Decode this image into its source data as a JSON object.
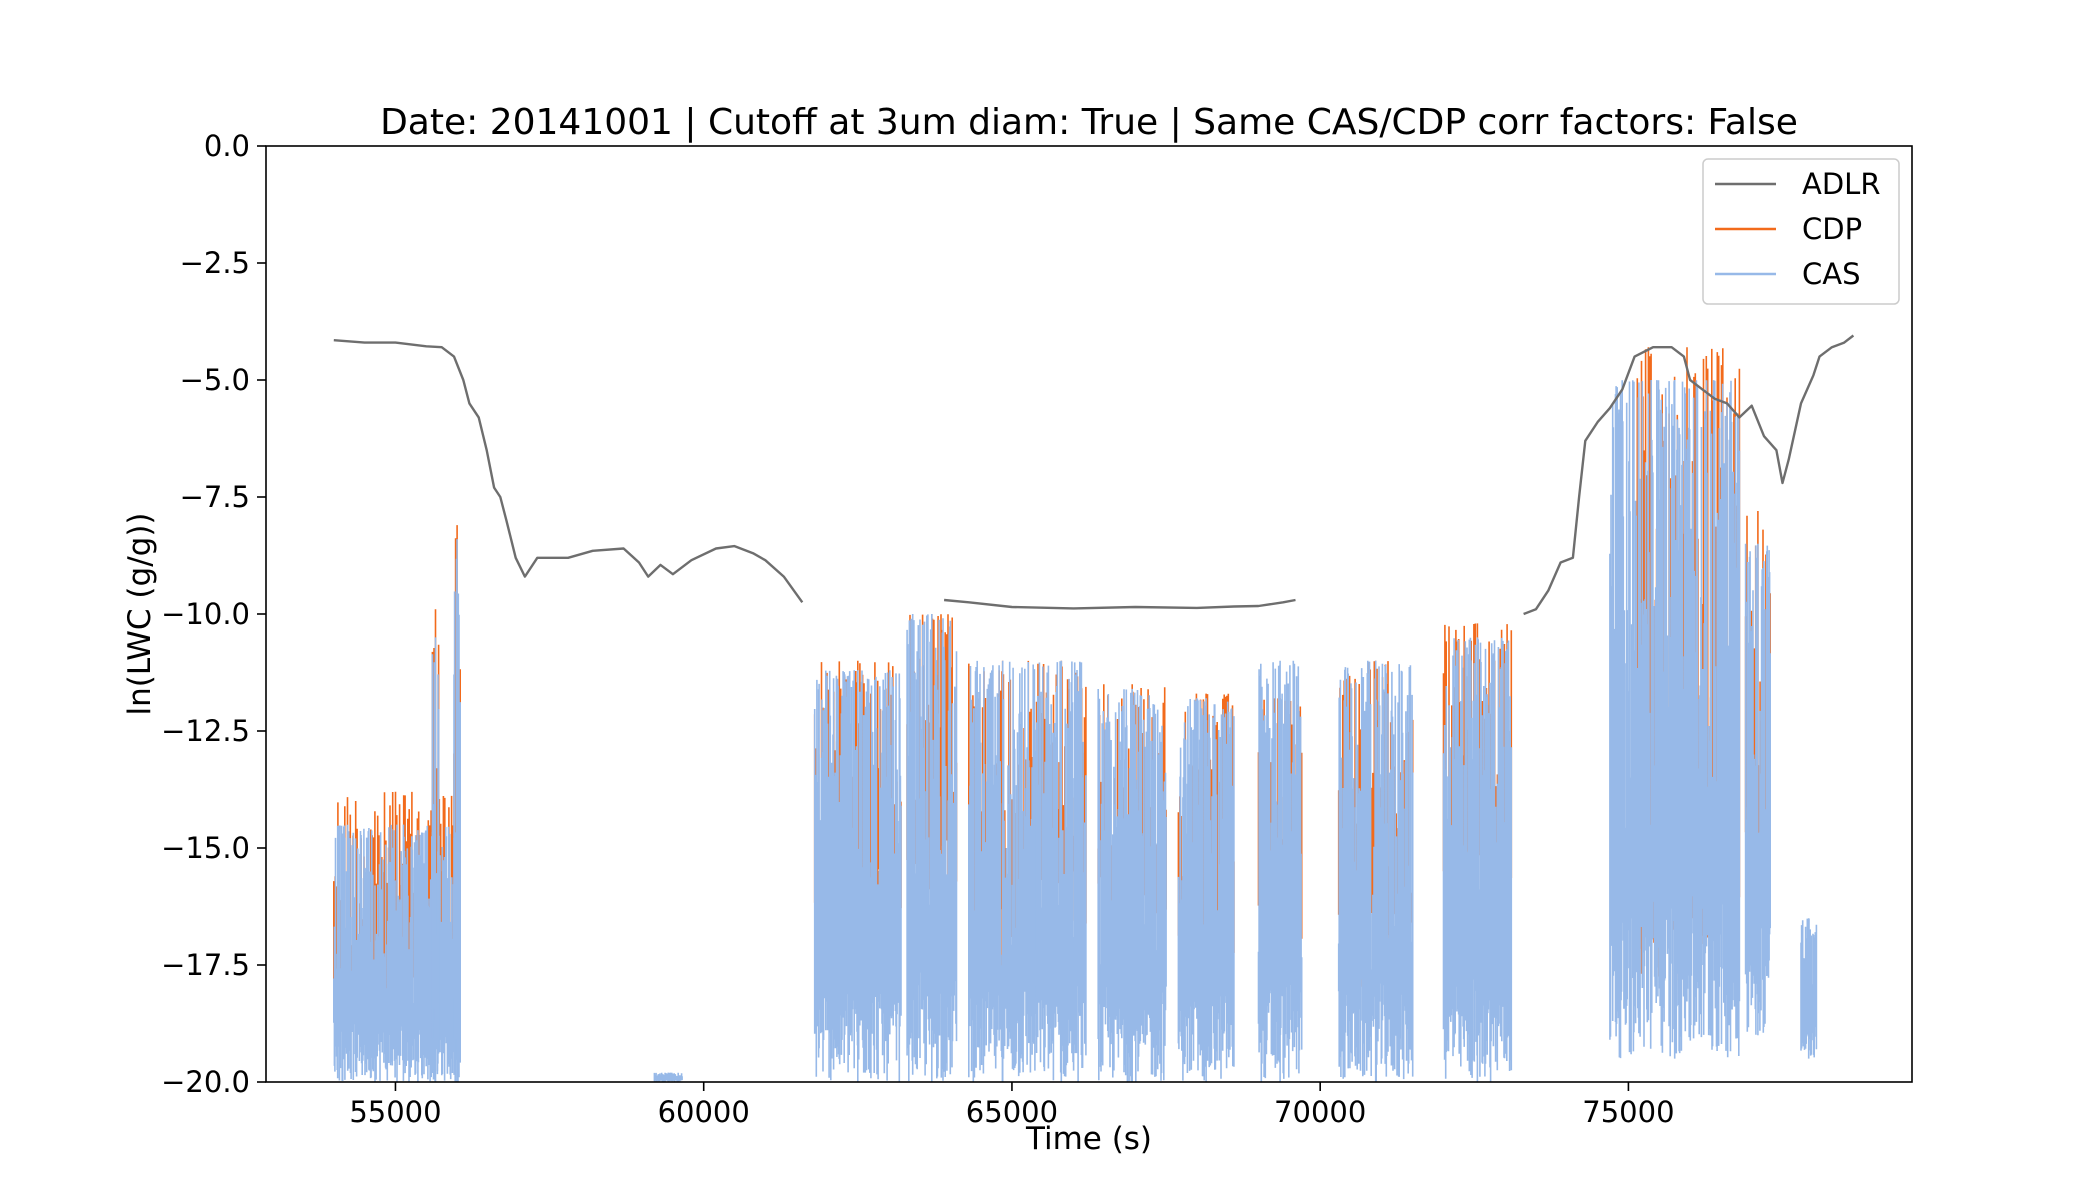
{
  "chart_data": {
    "type": "line",
    "title": "Date: 20141001 | Cutoff at 3um diam: True | Same CAS/CDP corr factors: False",
    "xlabel": "Time (s)",
    "ylabel": "ln(LWC (g/g))",
    "xlim": [
      52900,
      79600
    ],
    "ylim": [
      -20.0,
      0.0
    ],
    "xticks": [
      55000,
      60000,
      65000,
      70000,
      75000
    ],
    "yticks": [
      0.0,
      -2.5,
      -5.0,
      -7.5,
      -10.0,
      -12.5,
      -15.0,
      -17.5,
      -20.0
    ],
    "xtick_labels": [
      "55000",
      "60000",
      "65000",
      "70000",
      "75000"
    ],
    "ytick_labels": [
      "0.0",
      "−2.5",
      "−5.0",
      "−7.5",
      "−10.0",
      "−12.5",
      "−15.0",
      "−17.5",
      "−20.0"
    ],
    "grid": false,
    "legend_position": "top-right",
    "colors": {
      "ADLR": "#6e6e6e",
      "CDP": "#f26a1b",
      "CAS": "#97b9e8"
    },
    "series": [
      {
        "name": "ADLR",
        "segments": [
          [
            [
              54000,
              -4.15
            ],
            [
              54500,
              -4.2
            ],
            [
              55000,
              -4.2
            ],
            [
              55500,
              -4.28
            ],
            [
              55750,
              -4.3
            ],
            [
              55950,
              -4.5
            ],
            [
              56100,
              -5.0
            ],
            [
              56200,
              -5.5
            ],
            [
              56350,
              -5.8
            ],
            [
              56480,
              -6.5
            ],
            [
              56600,
              -7.3
            ],
            [
              56700,
              -7.5
            ],
            [
              56800,
              -8.0
            ],
            [
              56950,
              -8.8
            ],
            [
              57100,
              -9.2
            ],
            [
              57300,
              -8.8
            ],
            [
              57800,
              -8.8
            ],
            [
              58200,
              -8.65
            ],
            [
              58700,
              -8.6
            ],
            [
              58950,
              -8.9
            ],
            [
              59100,
              -9.2
            ],
            [
              59300,
              -8.95
            ],
            [
              59500,
              -9.15
            ],
            [
              59800,
              -8.85
            ],
            [
              60200,
              -8.6
            ],
            [
              60500,
              -8.55
            ],
            [
              60800,
              -8.7
            ],
            [
              61000,
              -8.85
            ],
            [
              61300,
              -9.2
            ],
            [
              61600,
              -9.75
            ]
          ],
          [
            [
              63900,
              -9.7
            ],
            [
              64300,
              -9.75
            ],
            [
              65000,
              -9.85
            ],
            [
              66000,
              -9.88
            ],
            [
              67000,
              -9.85
            ],
            [
              68000,
              -9.87
            ],
            [
              68600,
              -9.84
            ],
            [
              69000,
              -9.83
            ],
            [
              69400,
              -9.75
            ],
            [
              69600,
              -9.7
            ]
          ],
          [
            [
              73300,
              -10.0
            ],
            [
              73500,
              -9.9
            ],
            [
              73700,
              -9.5
            ],
            [
              73900,
              -8.9
            ],
            [
              74100,
              -8.8
            ],
            [
              74200,
              -7.5
            ],
            [
              74300,
              -6.3
            ],
            [
              74500,
              -5.9
            ],
            [
              74700,
              -5.6
            ],
            [
              74900,
              -5.2
            ],
            [
              75100,
              -4.5
            ],
            [
              75400,
              -4.3
            ],
            [
              75700,
              -4.3
            ],
            [
              75900,
              -4.5
            ],
            [
              76000,
              -5.0
            ],
            [
              76200,
              -5.2
            ],
            [
              76400,
              -5.4
            ],
            [
              76600,
              -5.5
            ],
            [
              76800,
              -5.8
            ],
            [
              77000,
              -5.55
            ],
            [
              77200,
              -6.2
            ],
            [
              77400,
              -6.5
            ],
            [
              77500,
              -7.2
            ],
            [
              77600,
              -6.7
            ],
            [
              77800,
              -5.5
            ],
            [
              78000,
              -4.9
            ],
            [
              78100,
              -4.5
            ],
            [
              78300,
              -4.3
            ],
            [
              78500,
              -4.2
            ],
            [
              78650,
              -4.05
            ]
          ]
        ]
      },
      {
        "name": "CDP",
        "spikes": [
          {
            "x_range": [
              54000,
              56000
            ],
            "bottom": -18.8,
            "top": -13.8
          },
          {
            "x_range": [
              55600,
              55700
            ],
            "bottom": -18.0,
            "top": -9.9
          },
          {
            "x_range": [
              55950,
              56050
            ],
            "bottom": -18.0,
            "top": -8.1
          },
          {
            "x_range": [
              61800,
              63200
            ],
            "bottom": -16.8,
            "top": -11.0
          },
          {
            "x_range": [
              63300,
              64100
            ],
            "bottom": -16.0,
            "top": -10.0
          },
          {
            "x_range": [
              64300,
              65400
            ],
            "bottom": -17.7,
            "top": -11.0
          },
          {
            "x_range": [
              65400,
              66200
            ],
            "bottom": -17.0,
            "top": -11.0
          },
          {
            "x_range": [
              66400,
              67500
            ],
            "bottom": -16.7,
            "top": -11.5
          },
          {
            "x_range": [
              67700,
              68600
            ],
            "bottom": -17.4,
            "top": -11.7
          },
          {
            "x_range": [
              69000,
              69700
            ],
            "bottom": -17.0,
            "top": -11.8
          },
          {
            "x_range": [
              70300,
              71500
            ],
            "bottom": -18.0,
            "top": -11.0
          },
          {
            "x_range": [
              72000,
              73100
            ],
            "bottom": -16.5,
            "top": -10.2
          },
          {
            "x_range": [
              75100,
              76800
            ],
            "bottom": -18.0,
            "top": -4.3
          },
          {
            "x_range": [
              76900,
              77300
            ],
            "bottom": -16.0,
            "top": -7.8
          }
        ]
      },
      {
        "name": "CAS",
        "spikes": [
          {
            "x_range": [
              54000,
              56050
            ],
            "bottom": -20.0,
            "top": -14.5
          },
          {
            "x_range": [
              55600,
              55700
            ],
            "bottom": -20.0,
            "top": -10.5
          },
          {
            "x_range": [
              55950,
              56050
            ],
            "bottom": -20.0,
            "top": -8.4
          },
          {
            "x_range": [
              59200,
              59650
            ],
            "bottom": -20.0,
            "top": -19.8
          },
          {
            "x_range": [
              61800,
              63200
            ],
            "bottom": -20.0,
            "top": -11.2
          },
          {
            "x_range": [
              63300,
              64100
            ],
            "bottom": -20.0,
            "top": -10.0
          },
          {
            "x_range": [
              64300,
              65400
            ],
            "bottom": -20.0,
            "top": -11.0
          },
          {
            "x_range": [
              65400,
              66200
            ],
            "bottom": -20.0,
            "top": -11.0
          },
          {
            "x_range": [
              66400,
              67500
            ],
            "bottom": -20.0,
            "top": -11.6
          },
          {
            "x_range": [
              67700,
              68600
            ],
            "bottom": -20.0,
            "top": -11.8
          },
          {
            "x_range": [
              69000,
              69700
            ],
            "bottom": -20.0,
            "top": -11.0
          },
          {
            "x_range": [
              70300,
              71500
            ],
            "bottom": -20.0,
            "top": -11.0
          },
          {
            "x_range": [
              72000,
              73100
            ],
            "bottom": -20.0,
            "top": -10.5
          },
          {
            "x_range": [
              74700,
              76800
            ],
            "bottom": -19.5,
            "top": -5.0
          },
          {
            "x_range": [
              76900,
              77300
            ],
            "bottom": -19.0,
            "top": -8.5
          },
          {
            "x_range": [
              77800,
              78050
            ],
            "bottom": -19.5,
            "top": -16.5
          }
        ]
      }
    ]
  }
}
